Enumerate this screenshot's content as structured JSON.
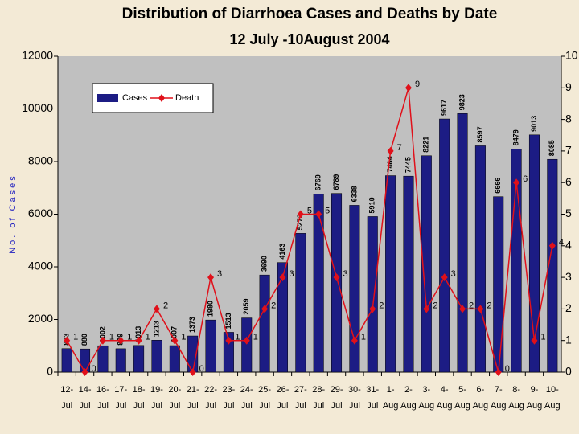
{
  "chart_data": {
    "type": "bar-line",
    "title": "Distribution of Diarrhoea Cases and Deaths by Date",
    "subtitle": "12 July -10August 2004",
    "ylabel": "No. of Cases",
    "categories": [
      "12-Jul",
      "14-Jul",
      "16-Jul",
      "17-Jul",
      "18-Jul",
      "19-Jul",
      "20-Jul",
      "21-Jul",
      "22-Jul",
      "23-Jul",
      "24-Jul",
      "25-Jul",
      "26-Jul",
      "27-Jul",
      "28-Jul",
      "29-Jul",
      "30-Jul",
      "31-Jul",
      "1-Aug",
      "2-Aug",
      "3-Aug",
      "4-Aug",
      "5-Aug",
      "6-Aug",
      "7-Aug",
      "8-Aug",
      "9-Aug",
      "10-Aug"
    ],
    "series": [
      {
        "name": "Cases",
        "color": "#1c1c84",
        "values": [
          893,
          880,
          1002,
          889,
          1013,
          1213,
          1007,
          1373,
          1980,
          1513,
          2059,
          3690,
          4163,
          5272,
          6769,
          6789,
          6338,
          5910,
          7464,
          7445,
          8221,
          9617,
          9823,
          8597,
          6666,
          8479,
          9013,
          8085
        ]
      },
      {
        "name": "Death",
        "color": "#e0101a",
        "axis": "y2",
        "values": [
          1,
          0,
          1,
          1,
          1,
          2,
          1,
          0,
          3,
          1,
          1,
          2,
          3,
          5,
          5,
          3,
          1,
          2,
          7,
          9,
          2,
          3,
          2,
          2,
          0,
          6,
          1,
          4
        ]
      }
    ],
    "ylim": [
      0,
      12000
    ],
    "yticks": [
      0,
      2000,
      4000,
      6000,
      8000,
      10000,
      12000
    ],
    "y2lim": [
      0,
      10
    ],
    "y2ticks": [
      0,
      1,
      2,
      3,
      4,
      5,
      6,
      7,
      8,
      9,
      10
    ],
    "grid": false,
    "legend": "top-left"
  }
}
